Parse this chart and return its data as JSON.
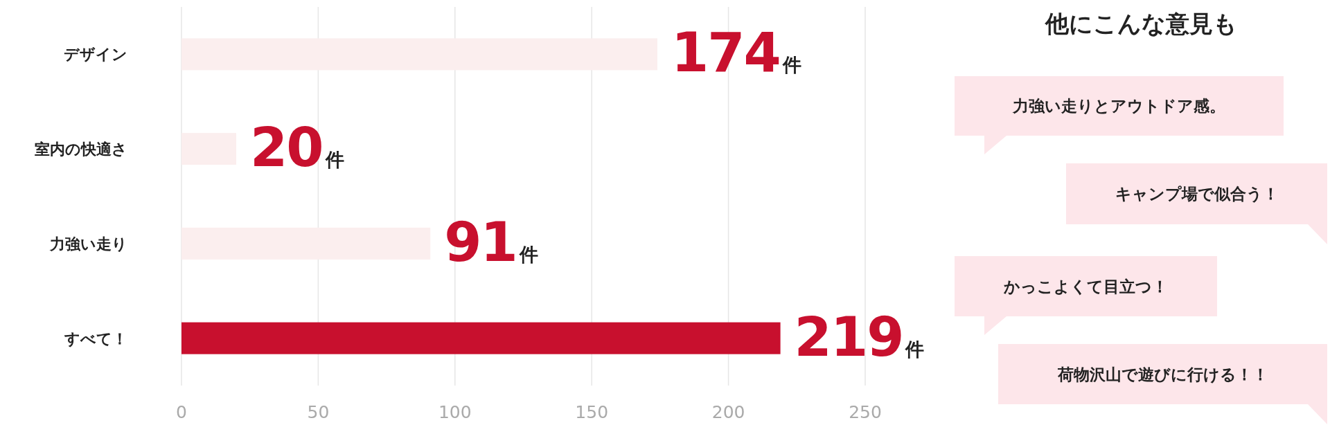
{
  "chart_data": [
    {
      "type": "bar",
      "orientation": "horizontal",
      "categories": [
        "デザイン",
        "室内の快適さ",
        "力強い走り",
        "すべて！"
      ],
      "values": [
        174,
        20,
        91,
        219
      ],
      "colors": [
        "#fbeeee",
        "#fbeeee",
        "#fbeeee",
        "#c8102e"
      ],
      "value_labels": [
        "174件",
        "20件",
        "91件",
        "219件"
      ],
      "xlim": [
        0,
        250
      ],
      "xticks": [
        0,
        50,
        100,
        150,
        200,
        250
      ],
      "grid": "x"
    },
    {
      "type": "other",
      "title": "他にこんな意見も",
      "annotations": [
        "力強い走りとアウトドア感。",
        "キャンプ場で似合う！",
        "かっこよくて目立つ！",
        "荷物沢山で遊びに行ける！！"
      ]
    }
  ]
}
